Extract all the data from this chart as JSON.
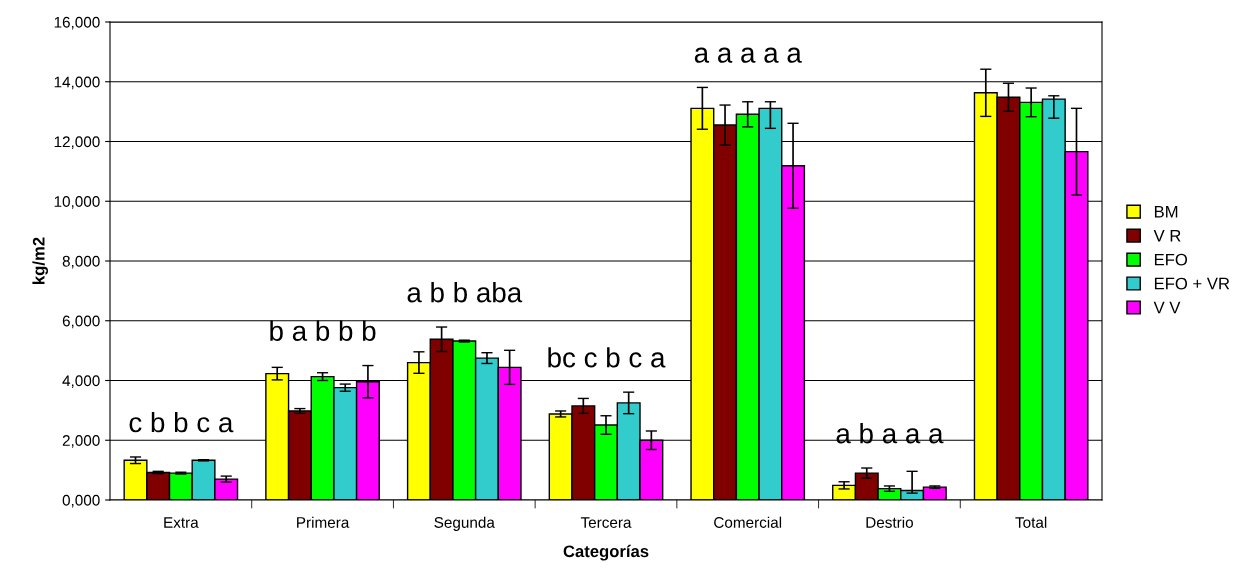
{
  "chart_data": {
    "type": "bar",
    "xlabel": "Categorías",
    "ylabel": "kg/m2",
    "categories": [
      "Extra",
      "Primera",
      "Segunda",
      "Tercera",
      "Comercial",
      "Destrio",
      "Total"
    ],
    "series": [
      {
        "name": "BM",
        "color": "#ffff00",
        "values": [
          1330,
          4230,
          4600,
          2880,
          13110,
          490,
          13630
        ],
        "errors": [
          110,
          210,
          360,
          100,
          700,
          120,
          790
        ]
      },
      {
        "name": "V R",
        "color": "#800000",
        "values": [
          920,
          2980,
          5380,
          3150,
          12550,
          900,
          13480
        ],
        "errors": [
          40,
          80,
          410,
          250,
          670,
          170,
          470
        ]
      },
      {
        "name": "EFO",
        "color": "#00ff00",
        "values": [
          900,
          4130,
          5320,
          2510,
          12910,
          380,
          13310
        ],
        "errors": [
          30,
          130,
          30,
          310,
          420,
          90,
          480
        ]
      },
      {
        "name": "EFO + VR",
        "color": "#33cccc",
        "values": [
          1330,
          3760,
          4750,
          3250,
          13110,
          320,
          13420
        ],
        "errors": [
          20,
          120,
          180,
          360,
          [
            12440,
            13330
          ],
          [
            230,
            960
          ],
          [
            12780,
            13530
          ]
        ]
      },
      {
        "name": "V V",
        "color": "#ff00ff",
        "values": [
          700,
          3960,
          4440,
          2000,
          11190,
          430,
          11660
        ],
        "errors": [
          100,
          540,
          570,
          310,
          1420,
          40,
          1450
        ]
      }
    ],
    "ylim": [
      0,
      16000
    ],
    "yticks": [
      {
        "value": 0,
        "label": "0,000"
      },
      {
        "value": 2000,
        "label": "2,000"
      },
      {
        "value": 4000,
        "label": "4,000"
      },
      {
        "value": 6000,
        "label": "6,000"
      },
      {
        "value": 8000,
        "label": "8,000"
      },
      {
        "value": 10000,
        "label": "10,000"
      },
      {
        "value": 12000,
        "label": "12,000"
      },
      {
        "value": 14000,
        "label": "14,000"
      },
      {
        "value": 16000,
        "label": "16,000"
      }
    ],
    "grid": "y",
    "legend": "right",
    "annotations": [
      "c b b c a",
      "b a b b b",
      "a b b aba",
      "bc c b c a",
      "a a a a a",
      "a b a a a"
    ]
  }
}
